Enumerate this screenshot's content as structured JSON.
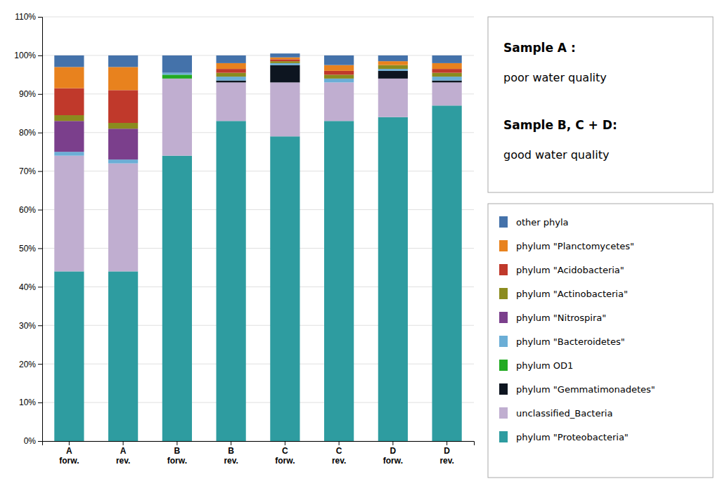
{
  "chart_data": {
    "type": "bar",
    "stacked": true,
    "grid": true,
    "legend": "right",
    "categories": [
      "A\nforw.",
      "A\nrev.",
      "B\nforw.",
      "B\nrev.",
      "C\nforw.",
      "C\nrev.",
      "D\nforw.",
      "D\nrev."
    ],
    "series": [
      {
        "name": "phylum \"Proteobacteria\"",
        "color": "#2e9ca0",
        "values": [
          44,
          44,
          74,
          83,
          79,
          83,
          84,
          87
        ]
      },
      {
        "name": "unclassified_Bacteria",
        "color": "#c0aed0",
        "values": [
          30,
          28,
          20,
          10,
          14,
          10,
          10,
          6
        ]
      },
      {
        "name": "phylum \"Gemmatimonadetes\"",
        "color": "#0d1520",
        "values": [
          0,
          0,
          0,
          0.5,
          4.5,
          0,
          2,
          0.5
        ]
      },
      {
        "name": "phylum OD1",
        "color": "#22aa22",
        "values": [
          0,
          0,
          1,
          0,
          0,
          0,
          0,
          0
        ]
      },
      {
        "name": "phylum \"Bacteroidetes\"",
        "color": "#6baed6",
        "values": [
          1,
          1,
          0.5,
          1,
          0.5,
          1,
          0.5,
          1
        ]
      },
      {
        "name": "phylum \"Nitrospira\"",
        "color": "#7b3f8c",
        "values": [
          8,
          8,
          0,
          0,
          0,
          0,
          0,
          0
        ]
      },
      {
        "name": "phylum \"Actinobacteria\"",
        "color": "#8b8b1e",
        "values": [
          1.5,
          1.5,
          0,
          1,
          0.5,
          1,
          1,
          1
        ]
      },
      {
        "name": "phylum \"Acidobacteria\"",
        "color": "#c0392b",
        "values": [
          7,
          8.5,
          0,
          1,
          0.5,
          1,
          0,
          1
        ]
      },
      {
        "name": "phylum \"Planctomycetes\"",
        "color": "#e8821e",
        "values": [
          5.5,
          6,
          0,
          1.5,
          0.5,
          1.5,
          1,
          1.5
        ]
      },
      {
        "name": "other phyla",
        "color": "#4472aa",
        "values": [
          3,
          3,
          4.5,
          2,
          1,
          2.5,
          1.5,
          2
        ]
      }
    ],
    "ylim": [
      0,
      110
    ],
    "yticks": [
      {
        "value": 0,
        "label": "0%"
      },
      {
        "value": 10,
        "label": "10%"
      },
      {
        "value": 20,
        "label": "20%"
      },
      {
        "value": 30,
        "label": "30%"
      },
      {
        "value": 40,
        "label": "40%"
      },
      {
        "value": 50,
        "label": "50%"
      },
      {
        "value": 60,
        "label": "60%"
      },
      {
        "value": 70,
        "label": "70%"
      },
      {
        "value": 80,
        "label": "80%"
      },
      {
        "value": 90,
        "label": "90%"
      },
      {
        "value": 100,
        "label": "100%"
      },
      {
        "value": 110,
        "label": "110%"
      }
    ],
    "annotations": [
      "Sample A :",
      "poor water quality",
      "Sample B, C + D:",
      "good water quality"
    ]
  }
}
